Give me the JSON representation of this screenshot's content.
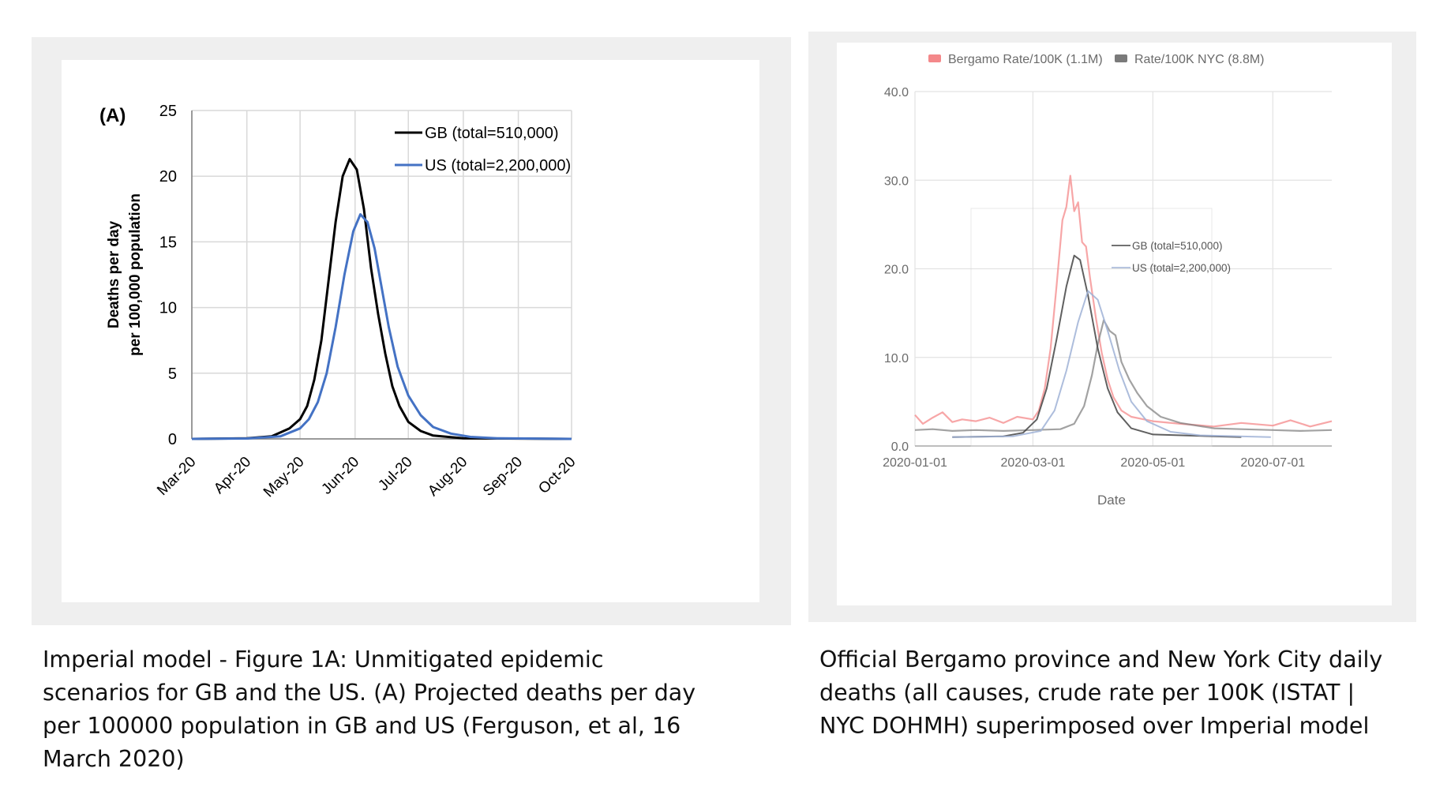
{
  "colors": {
    "gb": "#000000",
    "us": "#4472c4",
    "bergamo": "#f4888a",
    "nyc": "#7a7a7a",
    "grid_left": "#d9d9d9",
    "grid_right": "#e3e3e3"
  },
  "captions": {
    "left_lines": [
      "Imperial model - Figure 1A: Unmitigated epidemic",
      "scenarios for GB and the US. (A) Projected deaths per day",
      "per 100000 population in GB and US (Ferguson, et al, 16",
      "March 2020)"
    ],
    "right_lines": [
      "Official Bergamo province and New York City daily",
      "deaths (all causes, crude rate per 100K (ISTAT |",
      "NYC DOHMH) superimposed over Imperial model"
    ]
  },
  "chart_data": [
    {
      "type": "line",
      "panel_label": "(A)",
      "title": "",
      "xlabel": "",
      "ylabel": [
        "Deaths per day",
        "per 100,000 population"
      ],
      "ylim": [
        0,
        25
      ],
      "yticks": [
        0,
        5,
        10,
        15,
        20,
        25
      ],
      "x_ticks": [
        "Mar-20",
        "Apr-20",
        "May-20",
        "Jun-20",
        "Jul-20",
        "Aug-20",
        "Sep-20",
        "Oct-20"
      ],
      "x_start": "2020-03-01",
      "x_end": "2020-10-01",
      "grid": true,
      "legend_position": "top-right",
      "series": [
        {
          "name": "GB (total=510,000)",
          "color": "#000000",
          "points": [
            [
              "2020-03-01",
              0
            ],
            [
              "2020-04-01",
              0.05
            ],
            [
              "2020-04-15",
              0.2
            ],
            [
              "2020-04-25",
              0.8
            ],
            [
              "2020-05-01",
              1.5
            ],
            [
              "2020-05-05",
              2.5
            ],
            [
              "2020-05-09",
              4.5
            ],
            [
              "2020-05-13",
              7.5
            ],
            [
              "2020-05-17",
              12
            ],
            [
              "2020-05-21",
              16.5
            ],
            [
              "2020-05-25",
              20
            ],
            [
              "2020-05-29",
              21.3
            ],
            [
              "2020-06-02",
              20.5
            ],
            [
              "2020-06-06",
              17.5
            ],
            [
              "2020-06-10",
              13
            ],
            [
              "2020-06-14",
              9.5
            ],
            [
              "2020-06-18",
              6.5
            ],
            [
              "2020-06-22",
              4
            ],
            [
              "2020-06-26",
              2.5
            ],
            [
              "2020-07-01",
              1.3
            ],
            [
              "2020-07-08",
              0.6
            ],
            [
              "2020-07-15",
              0.25
            ],
            [
              "2020-08-01",
              0.05
            ],
            [
              "2020-10-01",
              0
            ]
          ]
        },
        {
          "name": "US (total=2,200,000)",
          "color": "#4472c4",
          "points": [
            [
              "2020-03-01",
              0
            ],
            [
              "2020-04-01",
              0.03
            ],
            [
              "2020-04-20",
              0.2
            ],
            [
              "2020-05-01",
              0.8
            ],
            [
              "2020-05-06",
              1.5
            ],
            [
              "2020-05-11",
              2.8
            ],
            [
              "2020-05-16",
              5
            ],
            [
              "2020-05-21",
              8.5
            ],
            [
              "2020-05-26",
              12.5
            ],
            [
              "2020-05-31",
              15.8
            ],
            [
              "2020-06-04",
              17.1
            ],
            [
              "2020-06-08",
              16.5
            ],
            [
              "2020-06-12",
              14.5
            ],
            [
              "2020-06-16",
              11.5
            ],
            [
              "2020-06-20",
              8.5
            ],
            [
              "2020-06-25",
              5.5
            ],
            [
              "2020-07-01",
              3.3
            ],
            [
              "2020-07-08",
              1.8
            ],
            [
              "2020-07-15",
              0.9
            ],
            [
              "2020-07-25",
              0.4
            ],
            [
              "2020-08-05",
              0.15
            ],
            [
              "2020-08-20",
              0.05
            ],
            [
              "2020-10-01",
              0
            ]
          ]
        }
      ]
    },
    {
      "type": "line",
      "title": "",
      "xlabel": "Date",
      "ylabel": "",
      "ylim": [
        0,
        40
      ],
      "yticks": [
        "0.0",
        "10.0",
        "20.0",
        "30.0",
        "40.0"
      ],
      "x_ticks": [
        "2020-01-01",
        "2020-03-01",
        "2020-05-01",
        "2020-07-01"
      ],
      "x_start": "2020-01-01",
      "x_end": "2020-07-31",
      "grid": true,
      "legend_position": "top",
      "series": [
        {
          "name": "Bergamo Rate/100K (1.1M)",
          "color": "#f4888a",
          "points": [
            [
              "2020-01-01",
              3.5
            ],
            [
              "2020-01-05",
              2.5
            ],
            [
              "2020-01-10",
              3.2
            ],
            [
              "2020-01-15",
              3.8
            ],
            [
              "2020-01-20",
              2.7
            ],
            [
              "2020-01-25",
              3.0
            ],
            [
              "2020-02-01",
              2.8
            ],
            [
              "2020-02-08",
              3.2
            ],
            [
              "2020-02-15",
              2.6
            ],
            [
              "2020-02-22",
              3.3
            ],
            [
              "2020-03-01",
              3.0
            ],
            [
              "2020-03-04",
              4.0
            ],
            [
              "2020-03-07",
              6.5
            ],
            [
              "2020-03-10",
              11
            ],
            [
              "2020-03-13",
              18
            ],
            [
              "2020-03-16",
              25.5
            ],
            [
              "2020-03-18",
              27
            ],
            [
              "2020-03-20",
              30.5
            ],
            [
              "2020-03-22",
              26.5
            ],
            [
              "2020-03-24",
              27.5
            ],
            [
              "2020-03-26",
              23
            ],
            [
              "2020-03-28",
              22.5
            ],
            [
              "2020-03-30",
              19
            ],
            [
              "2020-04-02",
              14.5
            ],
            [
              "2020-04-05",
              10.5
            ],
            [
              "2020-04-08",
              7.5
            ],
            [
              "2020-04-11",
              5.5
            ],
            [
              "2020-04-15",
              4
            ],
            [
              "2020-04-20",
              3.3
            ],
            [
              "2020-05-01",
              2.8
            ],
            [
              "2020-05-15",
              2.5
            ],
            [
              "2020-06-01",
              2.2
            ],
            [
              "2020-06-15",
              2.6
            ],
            [
              "2020-07-01",
              2.3
            ],
            [
              "2020-07-10",
              2.9
            ],
            [
              "2020-07-20",
              2.2
            ],
            [
              "2020-07-31",
              2.8
            ]
          ]
        },
        {
          "name": "Rate/100K NYC (8.8M)",
          "color": "#7a7a7a",
          "points": [
            [
              "2020-01-01",
              1.8
            ],
            [
              "2020-01-10",
              1.9
            ],
            [
              "2020-01-20",
              1.7
            ],
            [
              "2020-02-01",
              1.8
            ],
            [
              "2020-02-15",
              1.7
            ],
            [
              "2020-03-01",
              1.8
            ],
            [
              "2020-03-15",
              1.9
            ],
            [
              "2020-03-22",
              2.5
            ],
            [
              "2020-03-27",
              4.5
            ],
            [
              "2020-03-31",
              8
            ],
            [
              "2020-04-03",
              11.5
            ],
            [
              "2020-04-06",
              14.2
            ],
            [
              "2020-04-09",
              13
            ],
            [
              "2020-04-12",
              12.5
            ],
            [
              "2020-04-15",
              9.5
            ],
            [
              "2020-04-19",
              7.5
            ],
            [
              "2020-04-23",
              6
            ],
            [
              "2020-04-28",
              4.5
            ],
            [
              "2020-05-05",
              3.3
            ],
            [
              "2020-05-15",
              2.6
            ],
            [
              "2020-06-01",
              2.0
            ],
            [
              "2020-06-15",
              1.9
            ],
            [
              "2020-07-01",
              1.8
            ],
            [
              "2020-07-15",
              1.7
            ],
            [
              "2020-07-31",
              1.8
            ]
          ]
        }
      ],
      "overlay": {
        "series": [
          {
            "name": "GB (total=510,000)",
            "color": "#444444",
            "points": [
              [
                "2020-01-20",
                1.0
              ],
              [
                "2020-02-15",
                1.1
              ],
              [
                "2020-02-25",
                1.5
              ],
              [
                "2020-03-03",
                3.0
              ],
              [
                "2020-03-08",
                6.5
              ],
              [
                "2020-03-13",
                12
              ],
              [
                "2020-03-18",
                18
              ],
              [
                "2020-03-22",
                21.5
              ],
              [
                "2020-03-25",
                21
              ],
              [
                "2020-03-29",
                17
              ],
              [
                "2020-04-03",
                11
              ],
              [
                "2020-04-08",
                6.5
              ],
              [
                "2020-04-13",
                3.8
              ],
              [
                "2020-04-20",
                2.0
              ],
              [
                "2020-05-01",
                1.3
              ],
              [
                "2020-06-15",
                1.0
              ]
            ]
          },
          {
            "name": "US (total=2,200,000)",
            "color": "#9fb2d6",
            "points": [
              [
                "2020-01-20",
                1.0
              ],
              [
                "2020-02-20",
                1.1
              ],
              [
                "2020-03-05",
                1.7
              ],
              [
                "2020-03-12",
                4.0
              ],
              [
                "2020-03-18",
                8.5
              ],
              [
                "2020-03-24",
                14
              ],
              [
                "2020-03-29",
                17.5
              ],
              [
                "2020-04-03",
                16.5
              ],
              [
                "2020-04-08",
                13
              ],
              [
                "2020-04-14",
                8.5
              ],
              [
                "2020-04-20",
                5
              ],
              [
                "2020-04-28",
                2.8
              ],
              [
                "2020-05-10",
                1.6
              ],
              [
                "2020-05-25",
                1.2
              ],
              [
                "2020-06-30",
                1.0
              ]
            ]
          }
        ]
      }
    }
  ]
}
